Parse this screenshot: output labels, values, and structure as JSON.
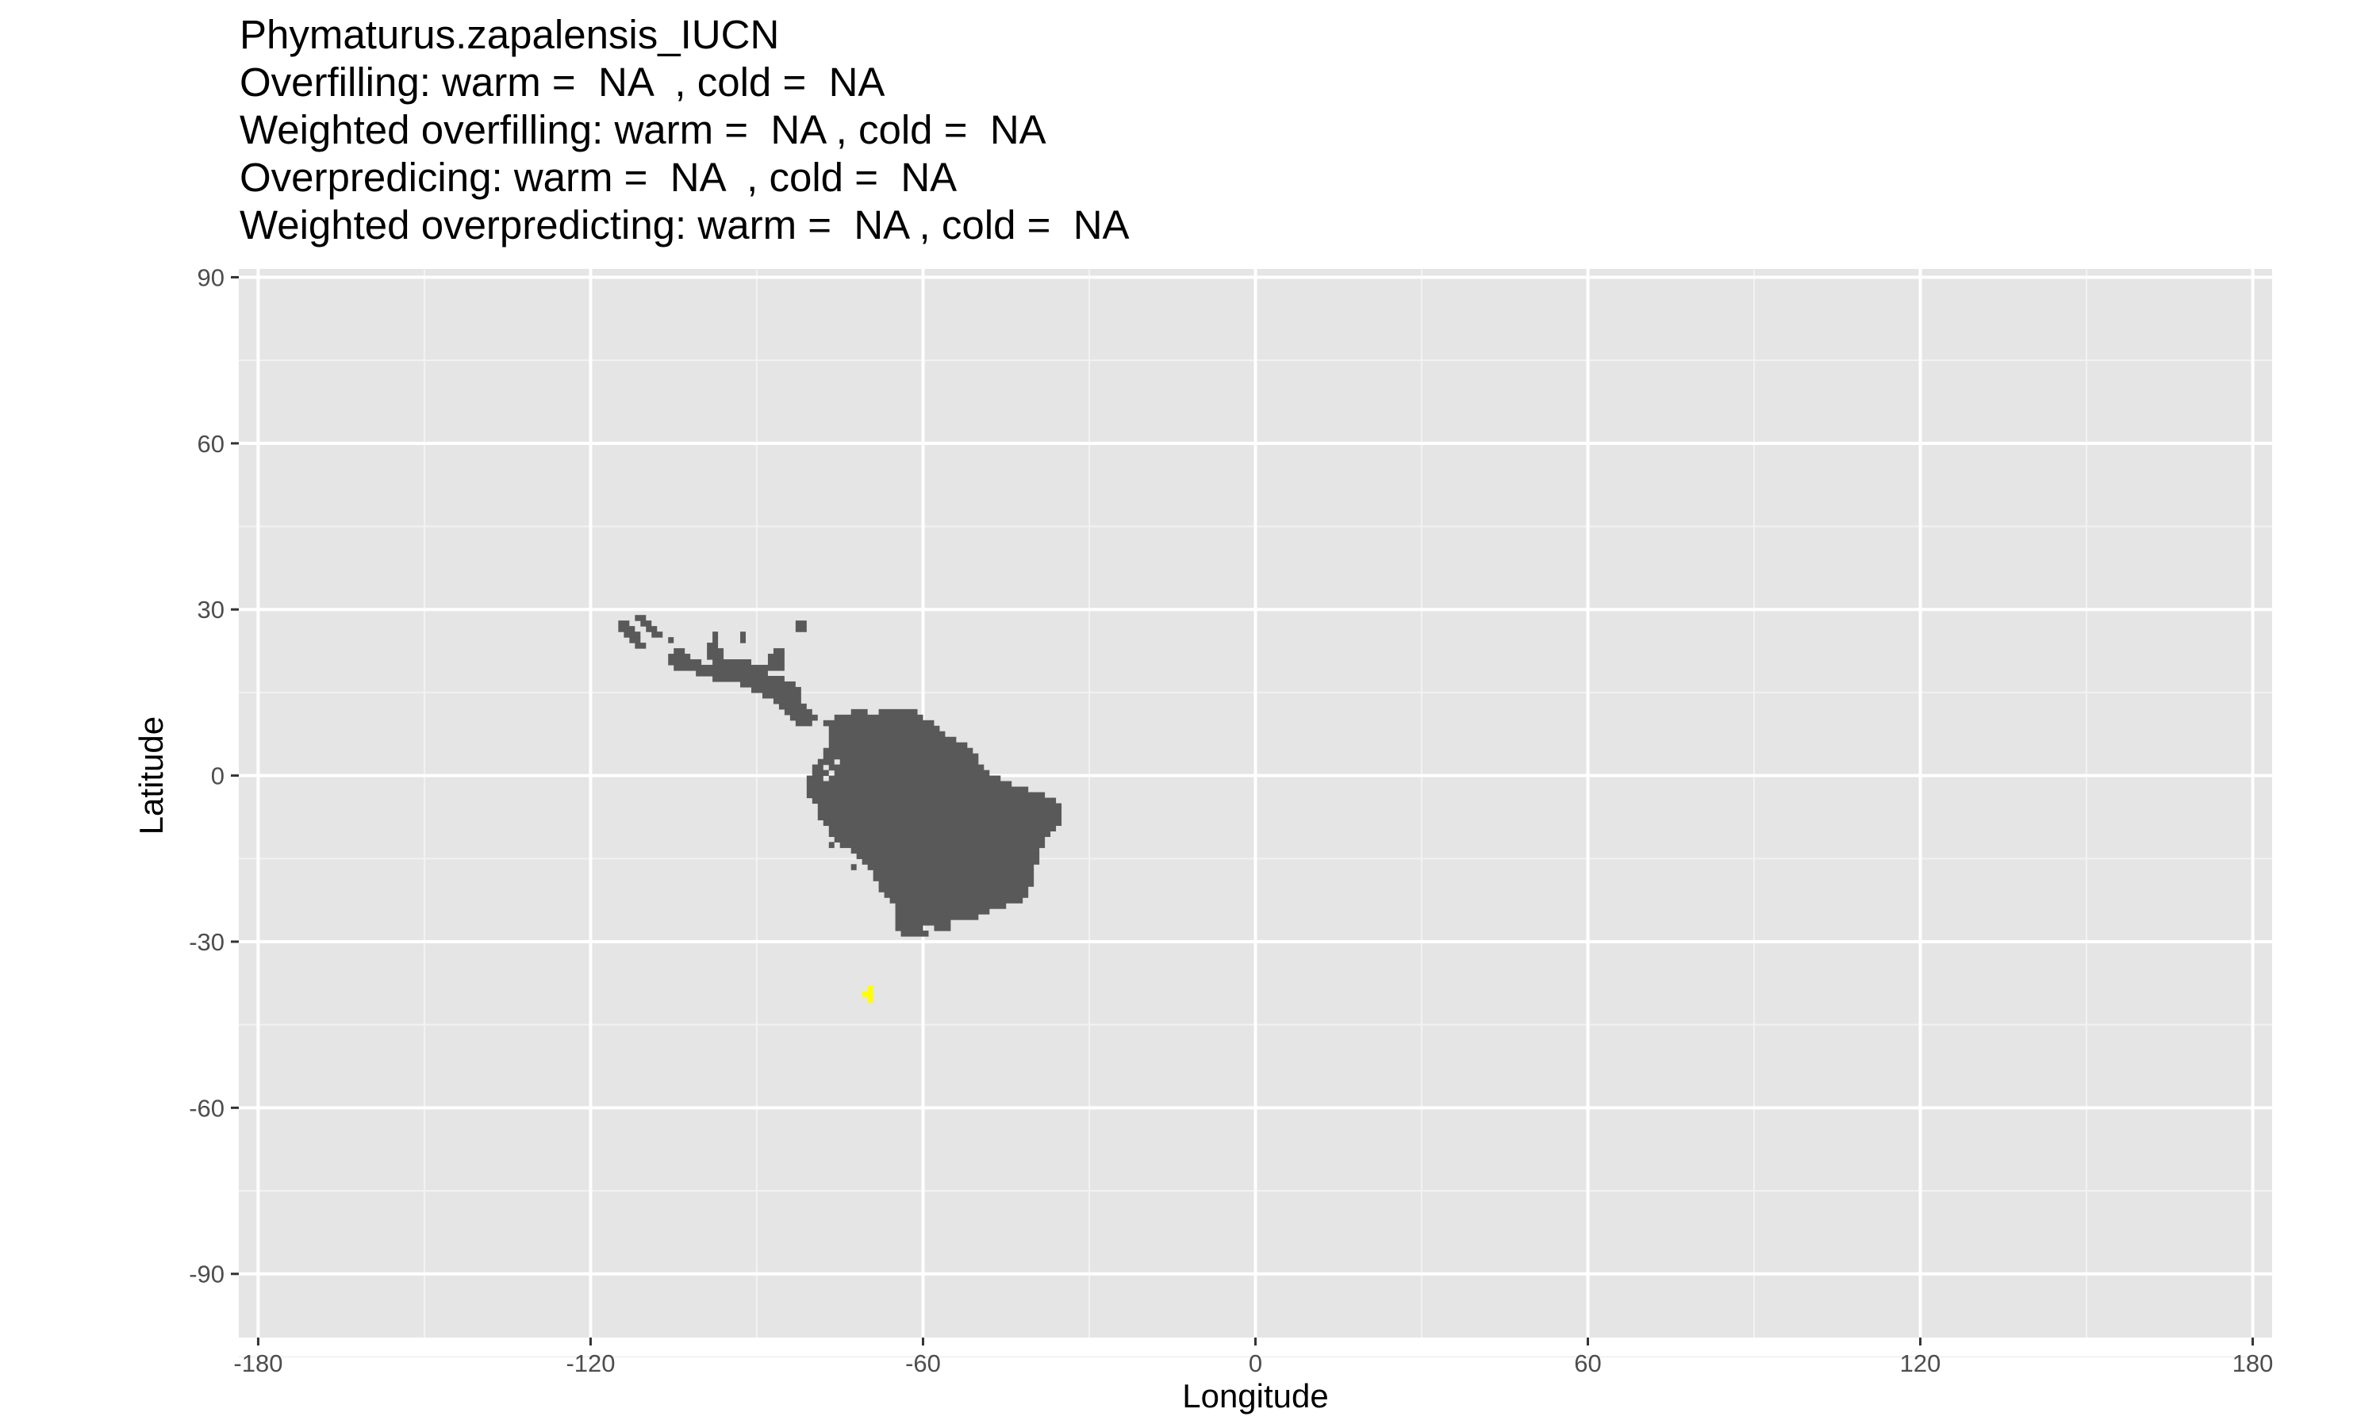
{
  "chart_data": {
    "type": "heatmap",
    "title_lines": [
      "Phymaturus.zapalensis_IUCN",
      "Overfilling: warm =  NA  , cold =  NA",
      "Weighted overfilling: warm =  NA , cold =  NA",
      "Overpredicing: warm =  NA  , cold =  NA",
      "Weighted overpredicting: warm =  NA , cold =  NA"
    ],
    "xlabel": "Longitude",
    "ylabel": "Latitude",
    "xlim": [
      -183.5,
      183.5
    ],
    "ylim": [
      -101.5,
      91.5
    ],
    "x_ticks": [
      -180,
      -120,
      -60,
      0,
      60,
      120,
      180
    ],
    "y_ticks": [
      90,
      60,
      30,
      0,
      -30,
      -60,
      -90
    ],
    "x_tick_labels": [
      "-180",
      "-120",
      "-60",
      "0",
      "60",
      "120",
      "180"
    ],
    "y_tick_labels": [
      "90",
      "60",
      "30",
      "0",
      "-30",
      "-60",
      "-90"
    ],
    "grid": true,
    "legend": "none",
    "colors": {
      "panel": "#e5e5e5",
      "grid_major": "#ffffff",
      "grid_minor": "#f2f2f2",
      "predicted_range": "#595959",
      "occurrence": "#ffff00"
    },
    "series": [
      {
        "kind": "predicted-range-cells",
        "color": "#595959",
        "cell_deg": 1,
        "rows": [
          {
            "lat": 28,
            "spans": [
              [
                -112,
                -110
              ]
            ]
          },
          {
            "lat": 27,
            "spans": [
              [
                -115,
                -113
              ],
              [
                -111,
                -109
              ],
              [
                -83,
                -81
              ]
            ]
          },
          {
            "lat": 26,
            "spans": [
              [
                -115,
                -112
              ],
              [
                -110,
                -108
              ],
              [
                -83,
                -81
              ]
            ]
          },
          {
            "lat": 25,
            "spans": [
              [
                -114,
                -111
              ],
              [
                -109,
                -107
              ],
              [
                -98,
                -97
              ],
              [
                -93,
                -92
              ]
            ]
          },
          {
            "lat": 24,
            "spans": [
              [
                -113,
                -111
              ],
              [
                -106,
                -105
              ],
              [
                -98,
                -97
              ],
              [
                -93,
                -92
              ]
            ]
          },
          {
            "lat": 23,
            "spans": [
              [
                -112,
                -110
              ],
              [
                -99,
                -97
              ]
            ]
          },
          {
            "lat": 22,
            "spans": [
              [
                -105,
                -103
              ],
              [
                -99,
                -96
              ],
              [
                -87,
                -85
              ]
            ]
          },
          {
            "lat": 21,
            "spans": [
              [
                -106,
                -102
              ],
              [
                -99,
                -96
              ],
              [
                -88,
                -85
              ]
            ]
          },
          {
            "lat": 20,
            "spans": [
              [
                -106,
                -100
              ],
              [
                -98,
                -91
              ],
              [
                -88,
                -85
              ]
            ]
          },
          {
            "lat": 19,
            "spans": [
              [
                -105,
                -85
              ]
            ]
          },
          {
            "lat": 18,
            "spans": [
              [
                -101,
                -88
              ]
            ]
          },
          {
            "lat": 17,
            "spans": [
              [
                -98,
                -85
              ]
            ]
          },
          {
            "lat": 16,
            "spans": [
              [
                -93,
                -83
              ]
            ]
          },
          {
            "lat": 15,
            "spans": [
              [
                -91,
                -82
              ]
            ]
          },
          {
            "lat": 14,
            "spans": [
              [
                -89,
                -82
              ]
            ]
          },
          {
            "lat": 13,
            "spans": [
              [
                -87,
                -82
              ]
            ]
          },
          {
            "lat": 12,
            "spans": [
              [
                -86,
                -81
              ]
            ]
          },
          {
            "lat": 11,
            "spans": [
              [
                -85,
                -80
              ],
              [
                -73,
                -70
              ],
              [
                -68,
                -61
              ]
            ]
          },
          {
            "lat": 10,
            "spans": [
              [
                -84,
                -79
              ],
              [
                -76,
                -60
              ]
            ]
          },
          {
            "lat": 9,
            "spans": [
              [
                -83,
                -80
              ],
              [
                -78,
                -58
              ]
            ]
          },
          {
            "lat": 8,
            "spans": [
              [
                -77,
                -57
              ]
            ]
          },
          {
            "lat": 7,
            "spans": [
              [
                -77,
                -56
              ]
            ]
          },
          {
            "lat": 6,
            "spans": [
              [
                -77,
                -54
              ]
            ]
          },
          {
            "lat": 5,
            "spans": [
              [
                -77,
                -52
              ]
            ]
          },
          {
            "lat": 4,
            "spans": [
              [
                -78,
                -51
              ]
            ]
          },
          {
            "lat": 3,
            "spans": [
              [
                -78,
                -50
              ]
            ]
          },
          {
            "lat": 2,
            "spans": [
              [
                -79,
                -76
              ],
              [
                -75,
                -50
              ]
            ]
          },
          {
            "lat": 1,
            "spans": [
              [
                -80,
                -78
              ],
              [
                -77,
                -49
              ]
            ]
          },
          {
            "lat": 0,
            "spans": [
              [
                -80,
                -77
              ],
              [
                -76,
                -48
              ]
            ]
          },
          {
            "lat": -1,
            "spans": [
              [
                -81,
                -78
              ],
              [
                -77,
                -46
              ]
            ]
          },
          {
            "lat": -2,
            "spans": [
              [
                -81,
                -44
              ]
            ]
          },
          {
            "lat": -3,
            "spans": [
              [
                -81,
                -41
              ]
            ]
          },
          {
            "lat": -4,
            "spans": [
              [
                -81,
                -38
              ]
            ]
          },
          {
            "lat": -5,
            "spans": [
              [
                -80,
                -36
              ]
            ]
          },
          {
            "lat": -6,
            "spans": [
              [
                -79,
                -35
              ]
            ]
          },
          {
            "lat": -7,
            "spans": [
              [
                -79,
                -35
              ]
            ]
          },
          {
            "lat": -8,
            "spans": [
              [
                -79,
                -35
              ]
            ]
          },
          {
            "lat": -9,
            "spans": [
              [
                -78,
                -35
              ]
            ]
          },
          {
            "lat": -10,
            "spans": [
              [
                -77,
                -36
              ]
            ]
          },
          {
            "lat": -11,
            "spans": [
              [
                -77,
                -37
              ]
            ]
          },
          {
            "lat": -12,
            "spans": [
              [
                -76,
                -38
              ]
            ]
          },
          {
            "lat": -13,
            "spans": [
              [
                -77,
                -76
              ],
              [
                -75,
                -38
              ]
            ]
          },
          {
            "lat": -14,
            "spans": [
              [
                -73,
                -39
              ]
            ]
          },
          {
            "lat": -15,
            "spans": [
              [
                -72,
                -39
              ]
            ]
          },
          {
            "lat": -16,
            "spans": [
              [
                -71,
                -39
              ]
            ]
          },
          {
            "lat": -17,
            "spans": [
              [
                -73,
                -72
              ],
              [
                -70,
                -40
              ]
            ]
          },
          {
            "lat": -18,
            "spans": [
              [
                -69,
                -40
              ]
            ]
          },
          {
            "lat": -19,
            "spans": [
              [
                -69,
                -40
              ]
            ]
          },
          {
            "lat": -20,
            "spans": [
              [
                -68,
                -40
              ]
            ]
          },
          {
            "lat": -21,
            "spans": [
              [
                -68,
                -41
              ]
            ]
          },
          {
            "lat": -22,
            "spans": [
              [
                -67,
                -41
              ]
            ]
          },
          {
            "lat": -23,
            "spans": [
              [
                -66,
                -42
              ]
            ]
          },
          {
            "lat": -24,
            "spans": [
              [
                -65,
                -45
              ]
            ]
          },
          {
            "lat": -25,
            "spans": [
              [
                -65,
                -48
              ]
            ]
          },
          {
            "lat": -26,
            "spans": [
              [
                -65,
                -50
              ]
            ]
          },
          {
            "lat": -27,
            "spans": [
              [
                -65,
                -55
              ]
            ]
          },
          {
            "lat": -28,
            "spans": [
              [
                -65,
                -60
              ],
              [
                -58,
                -55
              ]
            ]
          },
          {
            "lat": -29,
            "spans": [
              [
                -64,
                -59
              ]
            ]
          }
        ]
      },
      {
        "kind": "occurrence-cells",
        "color": "#ffff00",
        "cell_deg": 1,
        "rows": [
          {
            "lat": -39,
            "spans": [
              [
                -70,
                -69
              ]
            ]
          },
          {
            "lat": -40,
            "spans": [
              [
                -71,
                -69
              ]
            ]
          },
          {
            "lat": -41,
            "spans": [
              [
                -70,
                -69
              ]
            ]
          }
        ]
      }
    ]
  }
}
